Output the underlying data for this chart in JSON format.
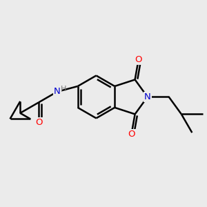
{
  "background_color": "#ebebeb",
  "bond_color": "#000000",
  "bond_width": 1.8,
  "atom_colors": {
    "O": "#ff0000",
    "N": "#0000cc",
    "H": "#7a7a7a"
  },
  "font_size": 9.5,
  "figsize": [
    3.0,
    3.0
  ],
  "dpi": 100
}
